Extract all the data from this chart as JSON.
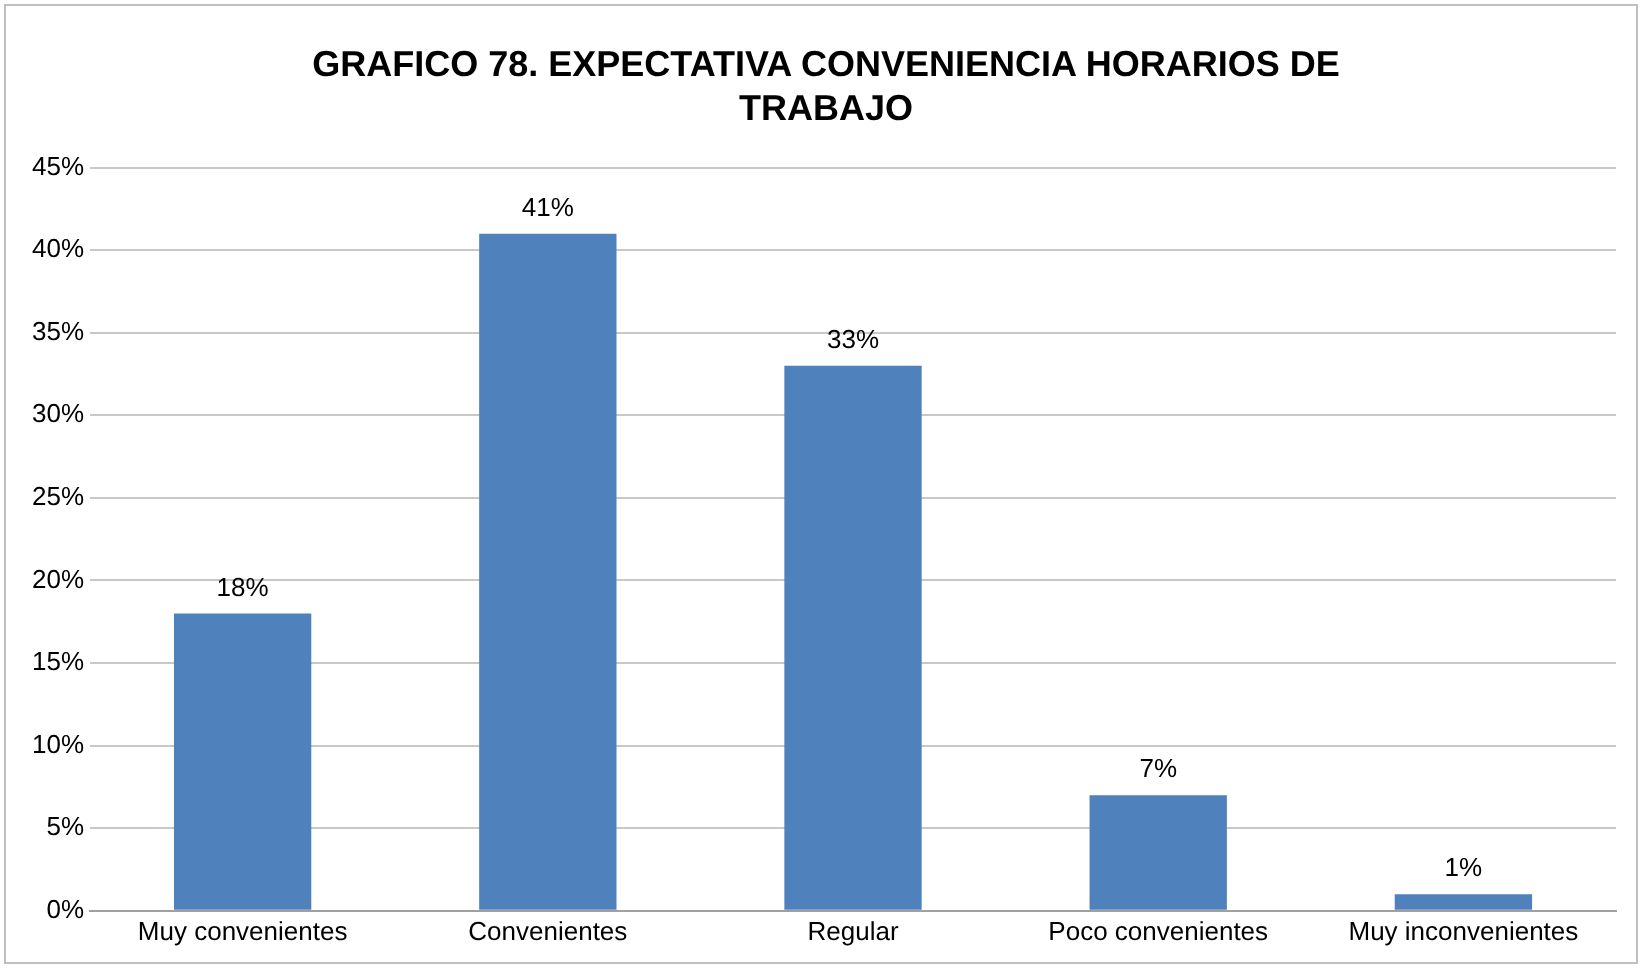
{
  "chart_data": {
    "type": "bar",
    "title": "GRAFICO 78. EXPECTATIVA CONVENIENCIA HORARIOS DE TRABAJO",
    "categories": [
      "Muy convenientes",
      "Convenientes",
      "Regular",
      "Poco convenientes",
      "Muy inconvenientes"
    ],
    "values": [
      18,
      41,
      33,
      7,
      1
    ],
    "value_labels": [
      "18%",
      "41%",
      "33%",
      "7%",
      "1%"
    ],
    "color": "#4f81bd",
    "ylim": [
      0,
      45
    ],
    "yticks": [
      {
        "value": 0,
        "label": "0%"
      },
      {
        "value": 5,
        "label": "5%"
      },
      {
        "value": 10,
        "label": "10%"
      },
      {
        "value": 15,
        "label": "15%"
      },
      {
        "value": 20,
        "label": "20%"
      },
      {
        "value": 25,
        "label": "25%"
      },
      {
        "value": 30,
        "label": "30%"
      },
      {
        "value": 35,
        "label": "35%"
      },
      {
        "value": 40,
        "label": "40%"
      },
      {
        "value": 45,
        "label": "45%"
      }
    ],
    "grid": "y",
    "legend": false
  }
}
